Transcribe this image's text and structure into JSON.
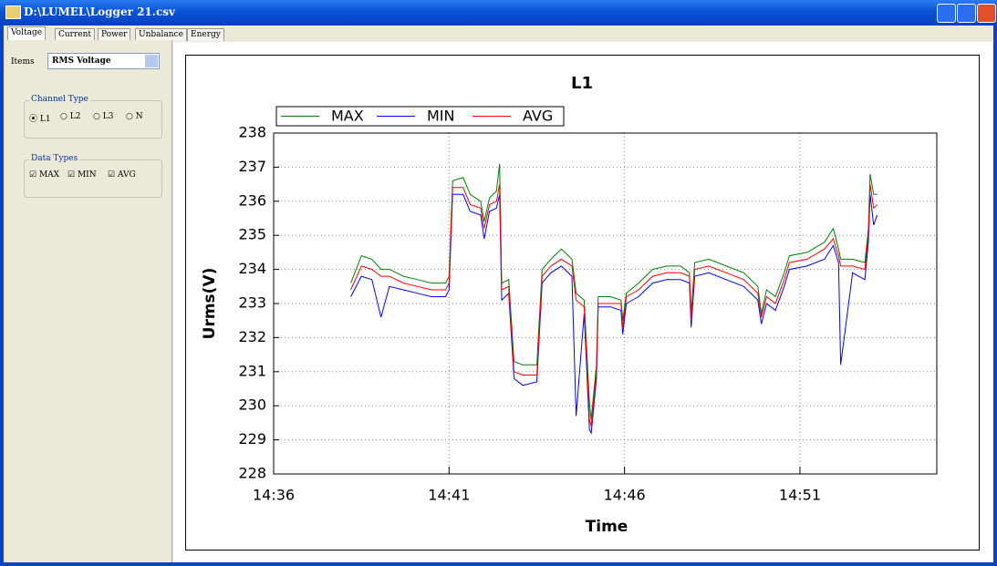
{
  "window": {
    "title": "D:\\LUMEL\\Logger 21.csv"
  },
  "tabs": [
    "Voltage",
    "Current",
    "Power",
    "Unbalance",
    "Energy"
  ],
  "panel": {
    "items_label": "Items",
    "items_value": "RMS Voltage",
    "channel_group": "Channel Type",
    "channels": [
      "L1",
      "L2",
      "L3",
      "N"
    ],
    "types_group": "Data Types",
    "types": [
      "MAX",
      "MIN",
      "AVG"
    ]
  },
  "chart_data": {
    "type": "line",
    "title": "L1",
    "x_label": "Time",
    "y_label": "Urms(V)",
    "legend": "top-left",
    "grid": true,
    "xlim": [
      876,
      894.9
    ],
    "xticks": [
      {
        "value": 876,
        "label": "14:36"
      },
      {
        "value": 881,
        "label": "14:41"
      },
      {
        "value": 886,
        "label": "14:46"
      },
      {
        "value": 891,
        "label": "14:51"
      }
    ],
    "ylim": [
      228,
      238
    ],
    "yticks": [
      228,
      229,
      230,
      231,
      232,
      233,
      234,
      235,
      236,
      237,
      238
    ],
    "x": [
      878.2,
      878.5,
      878.8,
      879.06,
      879.3,
      879.7,
      880.1,
      880.5,
      880.9,
      881.0,
      881.1,
      881.4,
      881.6,
      881.9,
      882.0,
      882.15,
      882.35,
      882.44,
      882.5,
      882.7,
      882.85,
      883.1,
      883.5,
      883.65,
      883.9,
      884.2,
      884.5,
      884.62,
      884.85,
      885.0,
      885.05,
      885.2,
      885.25,
      885.6,
      885.9,
      885.95,
      886.05,
      886.4,
      886.8,
      887.2,
      887.6,
      887.85,
      887.9,
      888.0,
      888.4,
      888.9,
      889.4,
      889.8,
      889.9,
      890.05,
      890.3,
      890.55,
      890.7,
      891.2,
      891.7,
      891.95,
      892.1,
      892.16,
      892.5,
      892.85,
      892.95,
      893.0,
      893.1,
      893.2
    ],
    "series": [
      {
        "name": "MAX",
        "color": "#008000",
        "values": [
          233.6,
          234.4,
          234.3,
          234.0,
          234.0,
          233.8,
          233.7,
          233.6,
          233.6,
          233.8,
          236.6,
          236.7,
          236.2,
          236.0,
          235.4,
          236.1,
          236.3,
          237.1,
          233.6,
          233.7,
          231.3,
          231.2,
          231.2,
          234.0,
          234.3,
          234.6,
          234.3,
          233.3,
          233.1,
          230.1,
          229.6,
          231.2,
          233.2,
          233.2,
          233.1,
          232.5,
          233.3,
          233.6,
          234.0,
          234.1,
          234.1,
          233.9,
          232.7,
          234.2,
          234.3,
          234.1,
          233.9,
          233.5,
          232.7,
          233.4,
          233.2,
          233.9,
          234.4,
          234.5,
          234.8,
          235.2,
          234.6,
          234.3,
          234.3,
          234.2,
          235.2,
          236.8,
          236.2,
          236.2
        ]
      },
      {
        "name": "MIN",
        "color": "#0000ff",
        "values": [
          233.2,
          233.8,
          233.7,
          232.6,
          233.5,
          233.4,
          233.3,
          233.2,
          233.2,
          233.4,
          236.2,
          236.2,
          235.7,
          235.6,
          234.9,
          235.7,
          235.8,
          236.2,
          233.1,
          233.3,
          230.8,
          230.6,
          230.7,
          233.6,
          233.9,
          234.1,
          233.8,
          229.7,
          232.7,
          229.3,
          229.2,
          230.8,
          232.9,
          232.9,
          232.8,
          232.1,
          233.0,
          233.2,
          233.6,
          233.7,
          233.7,
          233.6,
          232.3,
          233.8,
          233.9,
          233.7,
          233.5,
          233.1,
          232.4,
          233.0,
          232.8,
          233.5,
          234.0,
          234.1,
          234.3,
          234.7,
          234.2,
          231.2,
          233.9,
          233.7,
          234.8,
          236.2,
          235.3,
          235.6
        ]
      },
      {
        "name": "AVG",
        "color": "#ff0000",
        "values": [
          233.4,
          234.1,
          234.0,
          233.8,
          233.8,
          233.6,
          233.5,
          233.4,
          233.4,
          233.6,
          236.4,
          236.4,
          235.9,
          235.8,
          235.2,
          235.9,
          236.0,
          236.5,
          233.4,
          233.5,
          231.0,
          230.9,
          230.9,
          233.8,
          234.1,
          234.3,
          234.1,
          233.1,
          232.9,
          229.6,
          229.4,
          231.0,
          233.0,
          233.0,
          233.0,
          232.3,
          233.2,
          233.4,
          233.8,
          233.9,
          233.9,
          233.8,
          232.5,
          234.0,
          234.1,
          233.9,
          233.7,
          233.3,
          232.6,
          233.2,
          233.0,
          233.7,
          234.2,
          234.3,
          234.6,
          234.9,
          234.4,
          234.1,
          234.1,
          234.0,
          235.0,
          236.5,
          235.8,
          235.9
        ]
      }
    ]
  }
}
